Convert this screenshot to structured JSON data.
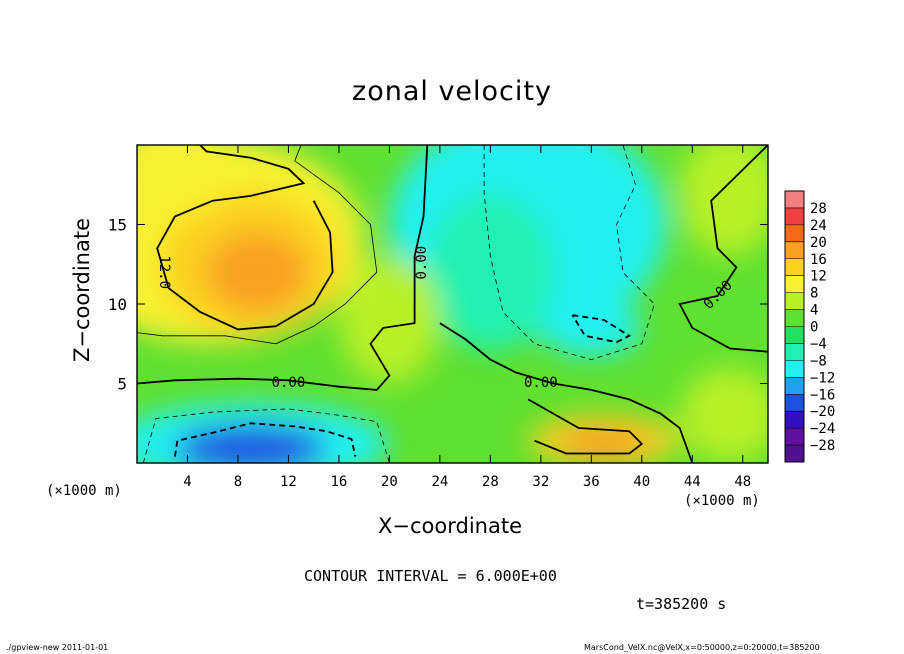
{
  "title": "zonal velocity",
  "xlabel": "X−coordinate",
  "ylabel": "Z−coordinate",
  "x_unit_left": "(×1000 m)",
  "x_unit_right": "(×1000 m)",
  "contour_interval_text": "CONTOUR INTERVAL = 6.000E+00",
  "time_text": "t=385200 s",
  "footer_left": "./gpview-new   2011-01-01",
  "footer_right": "MarsCond_VelX.nc@VelX,x=0:50000,z=0:20000,t=385200",
  "colors": {
    "background": "#ffffff",
    "ink": "#000000"
  },
  "chart_data": {
    "type": "heatmap",
    "title": "zonal velocity",
    "xlabel": "X−coordinate",
    "ylabel": "Z−coordinate",
    "xlim": [
      0,
      50
    ],
    "ylim": [
      0,
      20
    ],
    "x_ticks": [
      4,
      8,
      12,
      16,
      20,
      24,
      28,
      32,
      36,
      40,
      44,
      48
    ],
    "y_ticks": [
      5,
      10,
      15
    ],
    "colorbar": {
      "labels": [
        "28",
        "24",
        "20",
        "16",
        "12",
        "8",
        "4",
        "0",
        "−4",
        "−8",
        "−12",
        "−16",
        "−20",
        "−24",
        "−28"
      ],
      "colors": [
        "#f08080",
        "#f04040",
        "#f46a16",
        "#f8a020",
        "#fcd020",
        "#f8f030",
        "#b8f028",
        "#60e030",
        "#20e060",
        "#20f0b0",
        "#20f0f0",
        "#20a0f0",
        "#2050e0",
        "#3010c0",
        "#6010a0",
        "#501090"
      ]
    },
    "contour_labels": [
      "12.0",
      "0.00",
      "0.00",
      "0.00",
      "0.00"
    ],
    "features": [
      {
        "desc": "positive max",
        "x": 9,
        "z": 12,
        "value": 15
      },
      {
        "desc": "positive max",
        "x": 37,
        "z": 1.3,
        "value": 16
      },
      {
        "desc": "negative min",
        "x": 10,
        "z": 1,
        "value": -18
      },
      {
        "desc": "negative min",
        "x": 36,
        "z": 8.5,
        "value": -12
      },
      {
        "desc": "negative region",
        "x": 33,
        "z": 15,
        "value": -8
      },
      {
        "desc": "weak zone",
        "x": 20,
        "z": 7,
        "value": 2
      }
    ]
  }
}
